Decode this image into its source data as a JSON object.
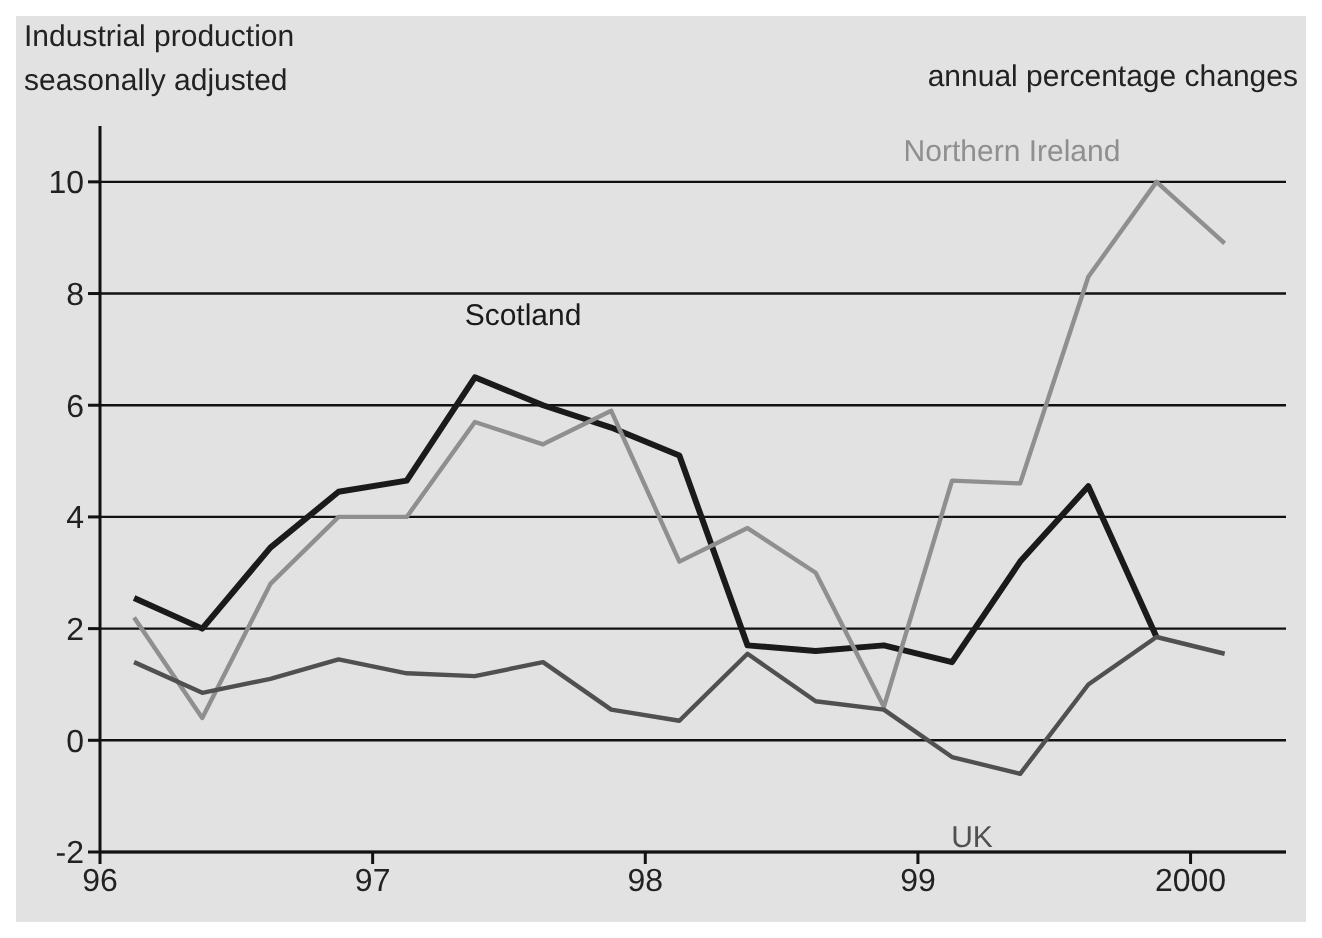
{
  "chart_data": {
    "type": "line",
    "title": "Industrial production",
    "subtitle": "seasonally adjusted",
    "annotations": [
      "annual percentage changes"
    ],
    "x": [
      1996.125,
      1996.375,
      1996.625,
      1996.875,
      1997.125,
      1997.375,
      1997.625,
      1997.875,
      1998.125,
      1998.375,
      1998.625,
      1998.875,
      1999.125,
      1999.375,
      1999.625,
      1999.875,
      2000.125
    ],
    "series": [
      {
        "name": "Scotland",
        "color": "#1a1a1a",
        "values": [
          2.55,
          2.0,
          3.45,
          4.45,
          4.65,
          6.5,
          6.0,
          5.6,
          5.1,
          1.7,
          1.6,
          1.7,
          1.4,
          3.2,
          4.55,
          1.85,
          null
        ]
      },
      {
        "name": "Northern Ireland",
        "color": "#8f8f8f",
        "values": [
          2.2,
          0.4,
          2.8,
          4.0,
          4.0,
          5.7,
          5.3,
          5.9,
          3.2,
          3.8,
          3.0,
          0.6,
          4.65,
          4.6,
          8.3,
          10.0,
          8.9
        ]
      },
      {
        "name": "UK",
        "color": "#505050",
        "values": [
          1.4,
          0.85,
          1.1,
          1.45,
          1.2,
          1.15,
          1.4,
          0.55,
          0.35,
          1.55,
          0.7,
          0.55,
          -0.3,
          -0.6,
          1.0,
          1.85,
          1.55
        ]
      }
    ],
    "xlim": [
      1996,
      2000.35
    ],
    "xticks": [
      {
        "value": 1996,
        "label": "96"
      },
      {
        "value": 1997,
        "label": "97"
      },
      {
        "value": 1998,
        "label": "98"
      },
      {
        "value": 1999,
        "label": "99"
      },
      2000
    ],
    "ylim": [
      -2,
      11
    ],
    "yticks": [
      -2,
      0,
      2,
      4,
      6,
      8,
      10
    ],
    "grid": "y",
    "marker": "none",
    "line_style": "solid"
  }
}
